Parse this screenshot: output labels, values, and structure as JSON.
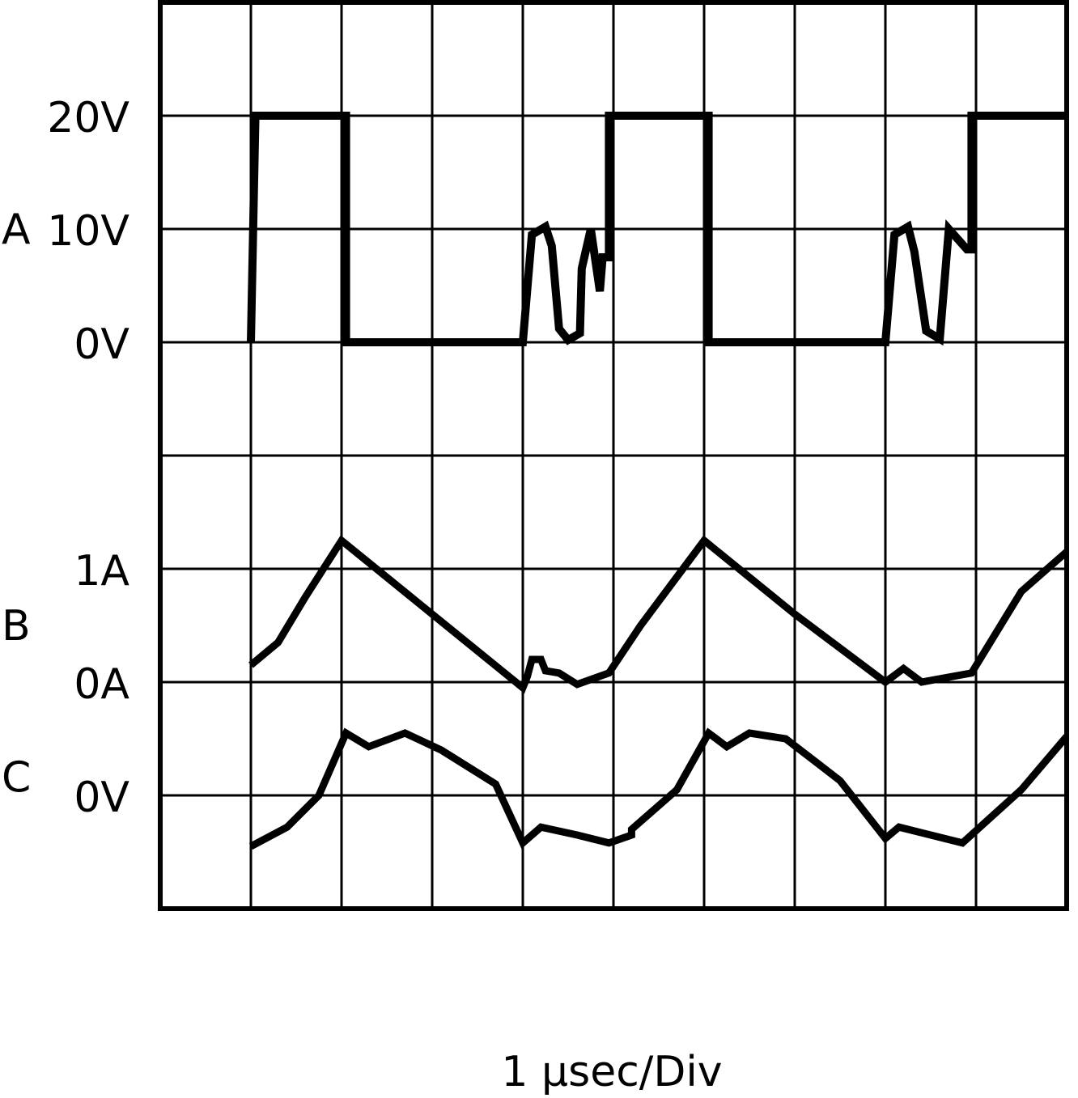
{
  "chart_data": {
    "type": "line",
    "xlabel": "1 μsec/Div",
    "grid": true,
    "x_range_div": [
      0,
      10
    ],
    "y_range_div": [
      0,
      8
    ],
    "trace_color": "#000000",
    "channels": [
      {
        "name": "A",
        "unit": "V",
        "volts_per_div": 10,
        "zero_div": 5,
        "tick_labels": [
          {
            "value": 20,
            "label": "20V"
          },
          {
            "value": 10,
            "label": "10V"
          },
          {
            "value": 0,
            "label": "0V"
          }
        ],
        "points": [
          [
            1.0,
            0
          ],
          [
            1.05,
            20
          ],
          [
            2.05,
            20
          ],
          [
            2.05,
            0
          ],
          [
            4.0,
            0
          ],
          [
            4.1,
            9.5
          ],
          [
            4.25,
            10.2
          ],
          [
            4.32,
            8.5
          ],
          [
            4.4,
            1.2
          ],
          [
            4.5,
            0.2
          ],
          [
            4.63,
            0.8
          ],
          [
            4.65,
            6.5
          ],
          [
            4.75,
            10
          ],
          [
            4.85,
            4.5
          ],
          [
            4.88,
            7.5
          ],
          [
            4.95,
            7.5
          ],
          [
            4.95,
            20
          ],
          [
            6.05,
            20
          ],
          [
            6.05,
            0
          ],
          [
            8.0,
            0
          ],
          [
            8.1,
            9.5
          ],
          [
            8.25,
            10.2
          ],
          [
            8.32,
            8.0
          ],
          [
            8.45,
            1.0
          ],
          [
            8.6,
            0.3
          ],
          [
            8.7,
            10
          ],
          [
            8.9,
            8.2
          ],
          [
            8.95,
            8.2
          ],
          [
            8.95,
            20
          ],
          [
            10.0,
            20
          ]
        ]
      },
      {
        "name": "B",
        "unit": "A",
        "amps_per_div": 1,
        "zero_div": 2,
        "tick_labels": [
          {
            "value": 1,
            "label": "1A"
          },
          {
            "value": 0,
            "label": "0A"
          }
        ],
        "points": [
          [
            1.0,
            0.15
          ],
          [
            1.3,
            0.35
          ],
          [
            1.6,
            0.75
          ],
          [
            2.0,
            1.25
          ],
          [
            3.0,
            0.6
          ],
          [
            4.0,
            -0.05
          ],
          [
            4.05,
            0.05
          ],
          [
            4.1,
            0.2
          ],
          [
            4.2,
            0.2
          ],
          [
            4.25,
            0.1
          ],
          [
            4.4,
            0.08
          ],
          [
            4.6,
            -0.02
          ],
          [
            4.95,
            0.08
          ],
          [
            5.3,
            0.5
          ],
          [
            6.0,
            1.25
          ],
          [
            7.0,
            0.6
          ],
          [
            8.0,
            0
          ],
          [
            8.2,
            0.12
          ],
          [
            8.4,
            0.0
          ],
          [
            8.95,
            0.08
          ],
          [
            9.5,
            0.8
          ],
          [
            10.0,
            1.15
          ]
        ]
      },
      {
        "name": "C",
        "unit": "V",
        "zero_div": 1,
        "tick_labels": [
          {
            "value": 0,
            "label": "0V"
          }
        ],
        "points_div": [
          [
            1.0,
            -0.45
          ],
          [
            1.4,
            -0.28
          ],
          [
            1.75,
            0.0
          ],
          [
            2.05,
            0.55
          ],
          [
            2.3,
            0.43
          ],
          [
            2.7,
            0.55
          ],
          [
            3.1,
            0.4
          ],
          [
            3.7,
            0.1
          ],
          [
            4.0,
            -0.42
          ],
          [
            4.2,
            -0.28
          ],
          [
            4.6,
            -0.35
          ],
          [
            4.95,
            -0.42
          ],
          [
            5.2,
            -0.35
          ],
          [
            5.2,
            -0.3
          ],
          [
            5.7,
            0.05
          ],
          [
            6.05,
            0.55
          ],
          [
            6.25,
            0.43
          ],
          [
            6.5,
            0.55
          ],
          [
            6.9,
            0.5
          ],
          [
            7.5,
            0.13
          ],
          [
            8.0,
            -0.38
          ],
          [
            8.15,
            -0.28
          ],
          [
            8.5,
            -0.35
          ],
          [
            8.85,
            -0.42
          ],
          [
            9.5,
            0.05
          ],
          [
            10.0,
            0.52
          ]
        ]
      }
    ]
  }
}
